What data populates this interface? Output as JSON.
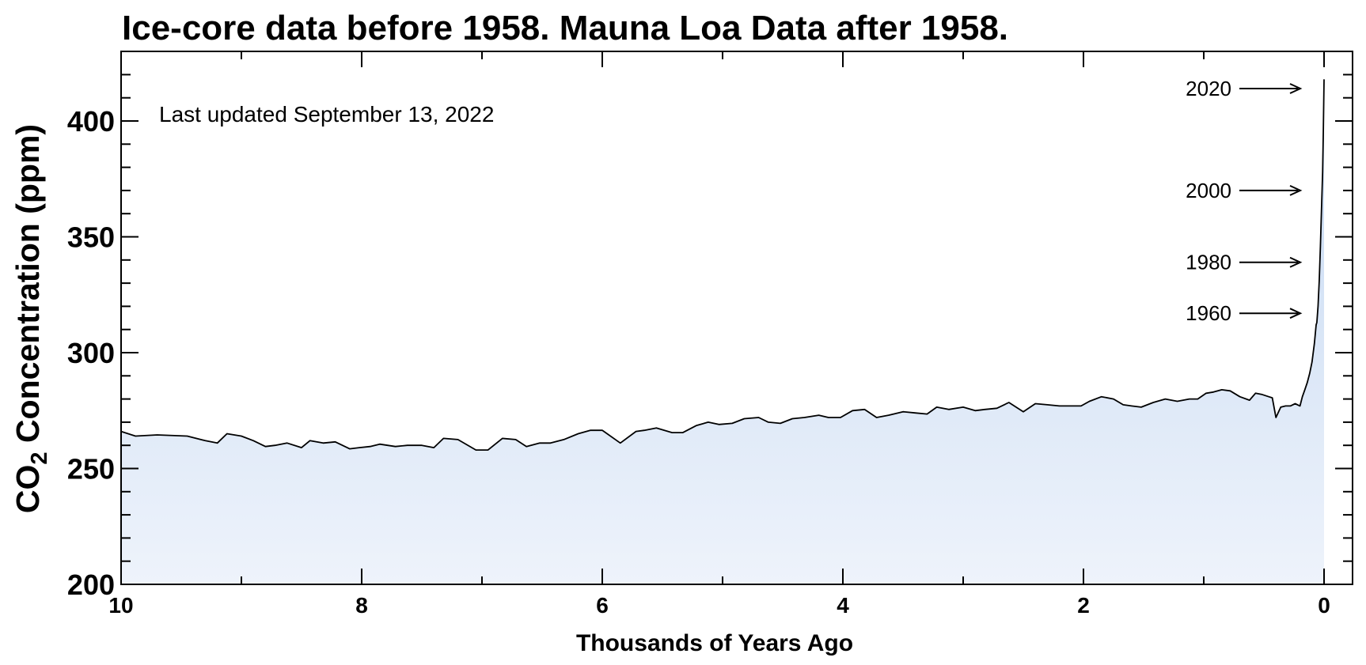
{
  "chart_data": {
    "type": "area",
    "title": "Ice-core data before 1958. Mauna Loa Data after 1958.",
    "xlabel": "Thousands of Years Ago",
    "ylabel": {
      "prefix": "CO",
      "subscript": "2",
      "suffix": " Concentration (ppm)"
    },
    "note": "Last updated September 13, 2022",
    "xlim": [
      10,
      0
    ],
    "ylim": [
      200,
      425
    ],
    "xticks": [
      10,
      8,
      6,
      4,
      2,
      0
    ],
    "xtick_labels": [
      "10",
      "8",
      "6",
      "4",
      "2",
      "0"
    ],
    "yticks": [
      200,
      250,
      300,
      350,
      400
    ],
    "ytick_labels": [
      "200",
      "250",
      "300",
      "350",
      "400"
    ],
    "grid": false,
    "fill_colors": {
      "top": "#c4d8f2",
      "bottom": "#eef3fb"
    },
    "line_color": "#000000",
    "annotations": [
      {
        "label": "2020",
        "y": 414
      },
      {
        "label": "2000",
        "y": 370
      },
      {
        "label": "1980",
        "y": 339
      },
      {
        "label": "1960",
        "y": 317
      }
    ],
    "series": [
      {
        "x": [
          10.0,
          9.88,
          9.7,
          9.45,
          9.3,
          9.2,
          9.12,
          9.0,
          8.9,
          8.8,
          8.72,
          8.62,
          8.5,
          8.43,
          8.32,
          8.22,
          8.1,
          8.02,
          7.93,
          7.85,
          7.72,
          7.62,
          7.5,
          7.4,
          7.32,
          7.2,
          7.05,
          6.95,
          6.83,
          6.72,
          6.63,
          6.52,
          6.43,
          6.32,
          6.2,
          6.1,
          6.0,
          5.85,
          5.72,
          5.65,
          5.55,
          5.42,
          5.33,
          5.22,
          5.12,
          5.03,
          4.92,
          4.82,
          4.7,
          4.62,
          4.52,
          4.42,
          4.32,
          4.2,
          4.12,
          4.02,
          3.92,
          3.82,
          3.72,
          3.62,
          3.5,
          3.4,
          3.3,
          3.22,
          3.12,
          3.0,
          2.9,
          2.82,
          2.72,
          2.62,
          2.5,
          2.4,
          2.3,
          2.2,
          2.1,
          2.02,
          1.95,
          1.85,
          1.75,
          1.67,
          1.6,
          1.52,
          1.42,
          1.32,
          1.22,
          1.12,
          1.05,
          0.98,
          0.92,
          0.85,
          0.78,
          0.7,
          0.62,
          0.57,
          0.52,
          0.46,
          0.43,
          0.4,
          0.36,
          0.32,
          0.28,
          0.24,
          0.2,
          0.18,
          0.16,
          0.14,
          0.12,
          0.1,
          0.08,
          0.066,
          0.06,
          0.05,
          0.04,
          0.03,
          0.022,
          0.012,
          0.006,
          0.0
        ],
        "y": [
          266,
          264,
          264.5,
          264,
          262,
          261,
          265,
          264,
          262,
          259.5,
          260,
          261,
          259,
          262,
          261,
          261.5,
          258.5,
          259,
          259.5,
          260.5,
          259.5,
          260,
          260,
          259,
          263,
          262.5,
          258,
          258,
          263,
          262.5,
          259.5,
          261,
          261,
          262.5,
          265,
          266.5,
          266.5,
          261,
          266,
          266.5,
          267.5,
          265.5,
          265.5,
          268.5,
          270,
          269,
          269.5,
          271.5,
          272,
          270,
          269.5,
          271.5,
          272,
          273,
          272,
          272,
          275,
          275.5,
          272,
          273,
          274.5,
          274,
          273.5,
          276.5,
          275.5,
          276.5,
          275,
          275.5,
          276,
          278.5,
          274.5,
          278,
          277.5,
          277,
          277,
          277,
          279,
          281,
          280,
          277.5,
          277,
          276.5,
          278.5,
          280,
          279,
          280,
          280,
          282.5,
          283,
          284,
          283.5,
          281,
          279.5,
          282.5,
          282,
          281,
          280.5,
          272,
          276.5,
          277,
          277,
          278,
          277,
          281,
          284,
          287,
          291,
          296,
          304,
          312,
          313,
          320,
          331,
          346,
          361,
          378,
          396,
          418
        ]
      }
    ]
  }
}
